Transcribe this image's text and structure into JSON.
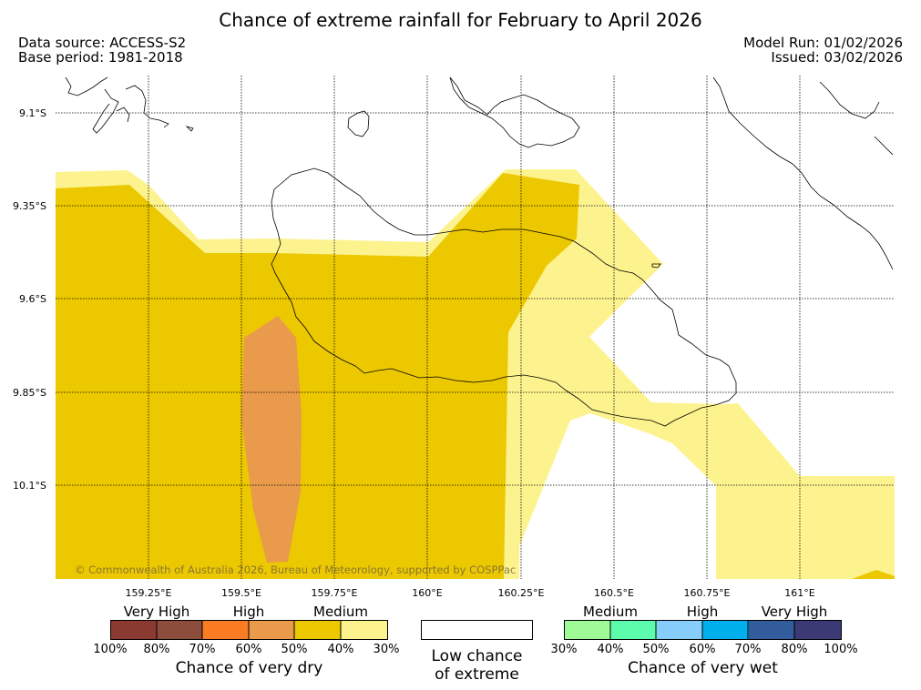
{
  "title": "Chance of extreme rainfall for February to April 2026",
  "meta": {
    "data_source": "Data source: ACCESS-S2",
    "base_period": "Base period: 1981-2018",
    "model_run": "Model Run: 01/02/2026",
    "issued": "Issued: 03/02/2026"
  },
  "map": {
    "lat_labels": [
      "9.1°S",
      "9.35°S",
      "9.6°S",
      "9.85°S",
      "10.1°S"
    ],
    "lon_labels": [
      "159.25°E",
      "159.5°E",
      "159.75°E",
      "160°E",
      "160.25°E",
      "160.5°E",
      "160.75°E",
      "161°E"
    ],
    "copyright": "© Commonwealth of Australia 2026, Bureau of Meteorology, supported by COSPPac",
    "colors": {
      "dry_30_40": "#fdf38e",
      "dry_40_50": "#ecc800",
      "dry_50_60": "#e99a4a"
    }
  },
  "legend": {
    "dry": {
      "categories": [
        "Very High",
        "High",
        "Medium"
      ],
      "ticks": [
        "100%",
        "80%",
        "70%",
        "60%",
        "50%",
        "40%",
        "30%"
      ],
      "colors": [
        "#8b3a32",
        "#8c4d3c",
        "#fa7d23",
        "#e99a4a",
        "#ecc800",
        "#fdf38e"
      ],
      "title": "Chance of very dry"
    },
    "low": {
      "label_line1": "Low chance",
      "label_line2": "of extreme"
    },
    "wet": {
      "categories": [
        "Medium",
        "High",
        "Very High"
      ],
      "ticks": [
        "30%",
        "40%",
        "50%",
        "60%",
        "70%",
        "80%",
        "100%"
      ],
      "colors": [
        "#9efb96",
        "#5dfbac",
        "#87cdfb",
        "#00b0ec",
        "#325c9c",
        "#3c3a74"
      ],
      "title": "Chance of very wet"
    }
  }
}
